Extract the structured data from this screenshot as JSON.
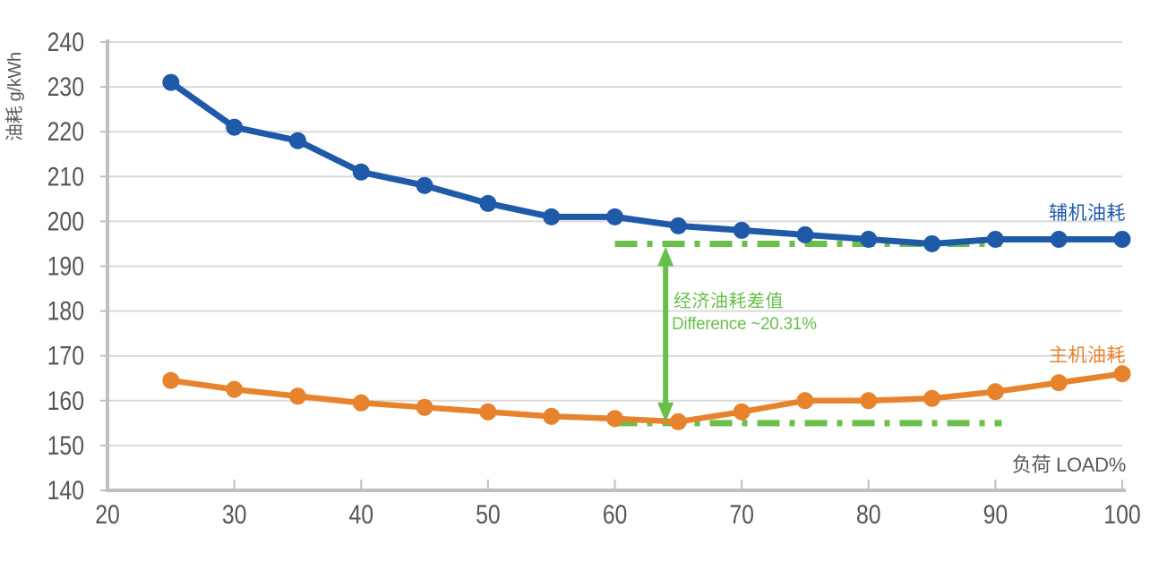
{
  "chart_data": {
    "type": "line",
    "title": "",
    "xlabel": "负荷 LOAD%",
    "ylabel": "油耗 g/kWh",
    "xlim": [
      20,
      100
    ],
    "ylim": [
      140,
      240
    ],
    "x_ticks": [
      20,
      30,
      40,
      50,
      60,
      70,
      80,
      90,
      100
    ],
    "y_ticks": [
      140,
      150,
      160,
      170,
      180,
      190,
      200,
      210,
      220,
      230,
      240
    ],
    "grid": "horizontal-only",
    "legend_position": "inline-end-of-line-labels",
    "series": [
      {
        "name": "辅机油耗",
        "color": "#1f5aa9",
        "x": [
          25,
          30,
          35,
          40,
          45,
          50,
          55,
          60,
          65,
          70,
          75,
          80,
          85,
          90,
          95,
          100
        ],
        "values": [
          231,
          221,
          218,
          211,
          208,
          204,
          201,
          201,
          199,
          198,
          197,
          196,
          195,
          196,
          196,
          196
        ]
      },
      {
        "name": "主机油耗",
        "color": "#e8832d",
        "x": [
          25,
          30,
          35,
          40,
          45,
          50,
          55,
          60,
          65,
          70,
          75,
          80,
          85,
          90,
          95,
          100
        ],
        "values": [
          164.5,
          162.5,
          161,
          159.5,
          158.5,
          157.5,
          156.5,
          156,
          155.3,
          157.5,
          160,
          160,
          160.5,
          162,
          164,
          166
        ]
      }
    ],
    "annotation": {
      "line1": "经济油耗差值",
      "line2": "Difference ~20.31%",
      "color": "#6abf4b",
      "upper_ref_value": 195,
      "lower_ref_value": 155,
      "ref_x_start": 60,
      "ref_x_end": 90.5,
      "arrow_x": 64
    }
  },
  "colors": {
    "grid": "#d9d9d9",
    "axis": "#bfbfbf",
    "tick_label": "#54575a",
    "axis_title": "#595959",
    "background": "#ffffff"
  }
}
